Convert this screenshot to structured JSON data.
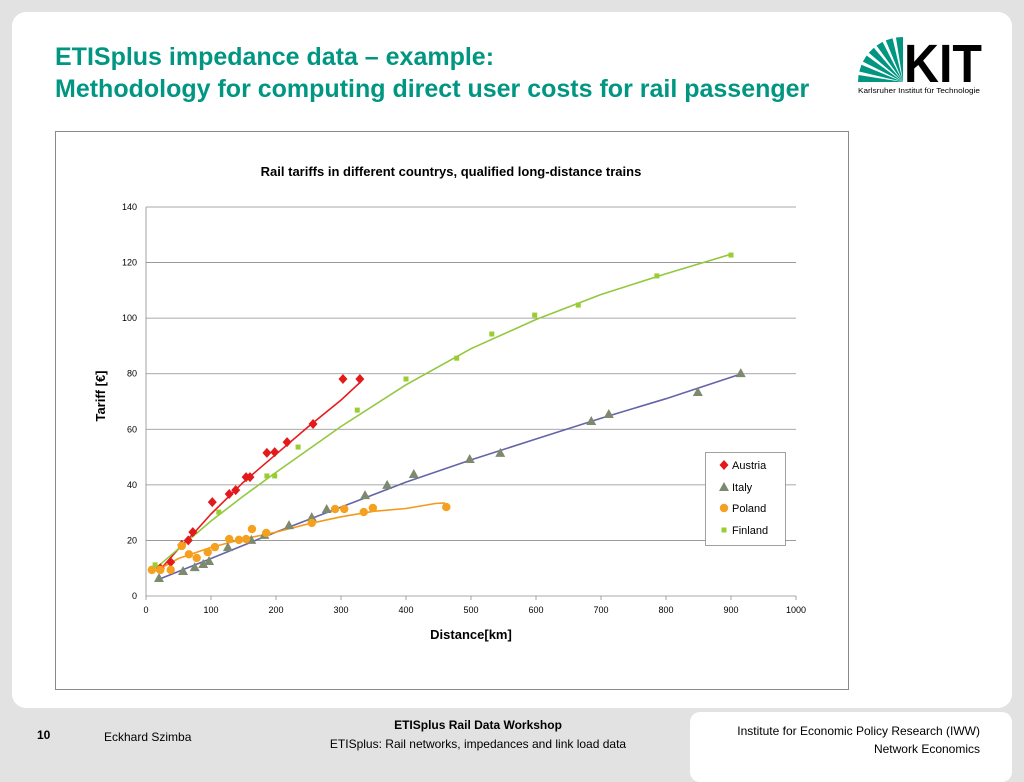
{
  "slide": {
    "title_line1": "ETISplus impedance data – example:",
    "title_line2": "Methodology for computing direct user costs for rail passenger",
    "logo_text": "KIT",
    "logo_subtitle": "Karlsruher Institut für Technologie"
  },
  "colors": {
    "title": "#009682",
    "logo_green": "#009682",
    "gridline": "#8c8c8c"
  },
  "footer": {
    "page_number": "10",
    "author": "Eckhard Szimba",
    "event": "ETISplus Rail Data Workshop",
    "subtitle": "ETISplus: Rail networks, impedances and link load data",
    "institute": "Institute for Economic Policy Research (IWW)",
    "department": "Network Economics"
  },
  "chart_data": {
    "type": "scatter",
    "title": "Rail tariffs in different countrys, qualified long-distance trains",
    "xlabel": "Distance[km]",
    "ylabel": "Tariff [€]",
    "xlim": [
      0,
      1000
    ],
    "ylim": [
      0,
      140
    ],
    "x_ticks": [
      0,
      100,
      200,
      300,
      400,
      500,
      600,
      700,
      800,
      900,
      1000
    ],
    "y_ticks": [
      0,
      20,
      40,
      60,
      80,
      100,
      120,
      140
    ],
    "grid": "horizontal",
    "legend_position": "right",
    "series": [
      {
        "name": "Austria",
        "marker": "diamond",
        "color": "#e31a1c",
        "trend_color": "#e8191c",
        "points": [
          [
            22,
            10
          ],
          [
            38,
            12.2
          ],
          [
            55,
            18.4
          ],
          [
            65,
            20
          ],
          [
            72,
            23
          ],
          [
            102,
            33.8
          ],
          [
            128,
            36.7
          ],
          [
            138,
            38.1
          ],
          [
            154,
            42.8
          ],
          [
            160,
            42.8
          ],
          [
            186,
            51.5
          ],
          [
            198,
            51.8
          ],
          [
            217,
            55.4
          ],
          [
            257,
            61.9
          ],
          [
            303,
            78.1
          ],
          [
            329,
            78.1
          ]
        ],
        "trend": [
          [
            20,
            9
          ],
          [
            50,
            17
          ],
          [
            75,
            23
          ],
          [
            100,
            29.5
          ],
          [
            150,
            41
          ],
          [
            200,
            51
          ],
          [
            250,
            61
          ],
          [
            300,
            70.5
          ],
          [
            330,
            77
          ]
        ]
      },
      {
        "name": "Italy",
        "marker": "triangle",
        "color": "#7e8a70",
        "trend_color": "#6464a8",
        "points": [
          [
            20,
            6.5
          ],
          [
            57,
            9
          ],
          [
            75,
            10.4
          ],
          [
            88,
            11.5
          ],
          [
            97,
            12.6
          ],
          [
            126,
            17.6
          ],
          [
            162,
            20.2
          ],
          [
            182,
            22
          ],
          [
            220,
            25.5
          ],
          [
            255,
            28.4
          ],
          [
            278,
            31.3
          ],
          [
            337,
            36.3
          ],
          [
            371,
            40
          ],
          [
            412,
            43.9
          ],
          [
            498,
            49.3
          ],
          [
            545,
            51.5
          ],
          [
            685,
            63
          ],
          [
            712,
            65.5
          ],
          [
            849,
            73.4
          ],
          [
            915,
            80.2
          ]
        ],
        "trend": [
          [
            20,
            6
          ],
          [
            100,
            13.5
          ],
          [
            200,
            23
          ],
          [
            300,
            32
          ],
          [
            400,
            41
          ],
          [
            500,
            49
          ],
          [
            600,
            56.5
          ],
          [
            700,
            64
          ],
          [
            800,
            71
          ],
          [
            910,
            79.5
          ]
        ]
      },
      {
        "name": "Poland",
        "marker": "circle",
        "color": "#f5a01e",
        "trend_color": "#f39a1c",
        "points": [
          [
            9,
            9.4
          ],
          [
            22,
            9.4
          ],
          [
            38,
            9.4
          ],
          [
            55,
            18
          ],
          [
            66,
            15
          ],
          [
            78,
            13.7
          ],
          [
            95,
            15.8
          ],
          [
            106,
            17.6
          ],
          [
            128,
            20.5
          ],
          [
            143,
            20.2
          ],
          [
            154,
            20.5
          ],
          [
            163,
            24.1
          ],
          [
            185,
            22.7
          ],
          [
            255,
            26.3
          ],
          [
            291,
            31.3
          ],
          [
            305,
            31.3
          ],
          [
            335,
            30.2
          ],
          [
            349,
            31.7
          ],
          [
            462,
            32
          ]
        ],
        "trend": [
          [
            15,
            9
          ],
          [
            50,
            13.5
          ],
          [
            100,
            17.5
          ],
          [
            150,
            20.5
          ],
          [
            200,
            23
          ],
          [
            250,
            26
          ],
          [
            300,
            28.5
          ],
          [
            350,
            30.5
          ],
          [
            400,
            31.5
          ],
          [
            445,
            33.3
          ],
          [
            460,
            33.5
          ]
        ]
      },
      {
        "name": "Finland",
        "marker": "square",
        "color": "#9acd32",
        "trend_color": "#92c83e",
        "points": [
          [
            14,
            11.2
          ],
          [
            112,
            30.2
          ],
          [
            186,
            43.2
          ],
          [
            198,
            43.2
          ],
          [
            234,
            53.6
          ],
          [
            325,
            66.9
          ],
          [
            400,
            78.1
          ],
          [
            478,
            85.6
          ],
          [
            532,
            94.3
          ],
          [
            598,
            101.1
          ],
          [
            665,
            104.7
          ],
          [
            786,
            115.2
          ],
          [
            900,
            122.7
          ]
        ],
        "trend": [
          [
            15,
            10
          ],
          [
            50,
            17
          ],
          [
            100,
            27
          ],
          [
            150,
            36
          ],
          [
            200,
            44.5
          ],
          [
            300,
            61
          ],
          [
            400,
            76
          ],
          [
            500,
            89
          ],
          [
            600,
            99.5
          ],
          [
            700,
            108.5
          ],
          [
            800,
            116
          ],
          [
            900,
            123
          ]
        ]
      }
    ]
  }
}
